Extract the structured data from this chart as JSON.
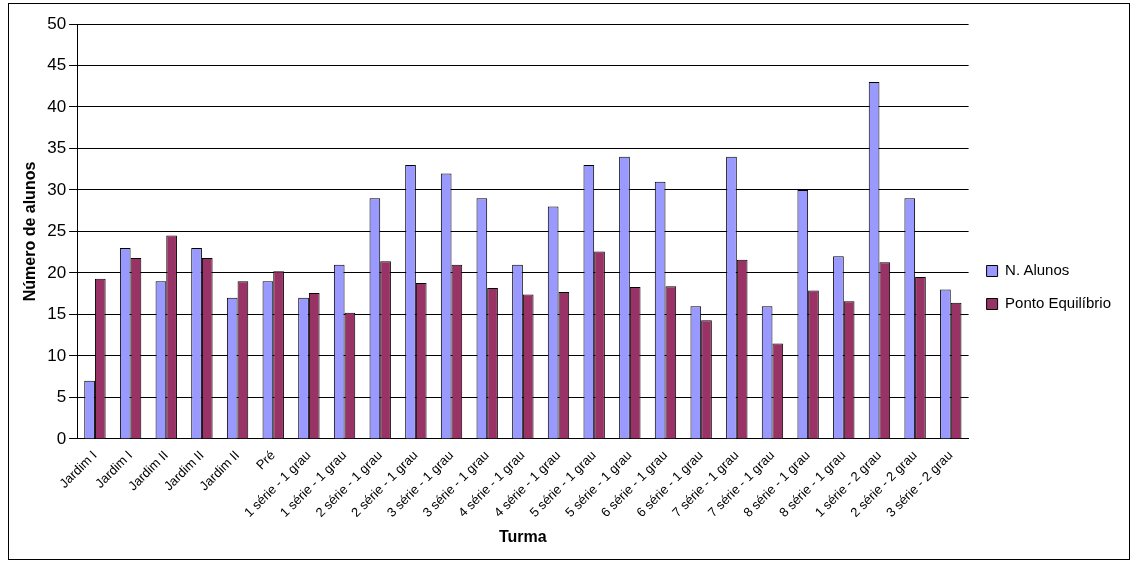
{
  "chart_data": {
    "type": "bar",
    "xlabel": "Turma",
    "ylabel": "Número de alunos",
    "categories": [
      "Jardim I",
      "Jardim I",
      "Jardim II",
      "Jardim II",
      "Jardim II",
      "Pré",
      "1 série - 1 grau",
      "1 série - 1 grau",
      "2 série - 1 grau",
      "2 série - 1 grau",
      "3 série - 1 grau",
      "3 série - 1 grau",
      "4 série - 1 grau",
      "4 série - 1 grau",
      "5 série - 1 grau",
      "5 série - 1 grau",
      "6 série - 1 grau",
      "6 série - 1 grau",
      "7 série - 1 grau",
      "7 série - 1 grau",
      "8 série - 1 grau",
      "8 série - 1 grau",
      "1 série - 2 grau",
      "2 série - 2 grau",
      "3 série - 2 grau"
    ],
    "series": [
      {
        "name": "N. Alunos",
        "color": "#9999ff",
        "values": [
          7,
          23,
          19,
          23,
          17,
          19,
          17,
          21,
          29,
          33,
          32,
          29,
          21,
          28,
          33,
          34,
          31,
          16,
          34,
          16,
          30,
          22,
          43,
          29,
          18
        ]
      },
      {
        "name": "Ponto Equilíbrio",
        "color": "#993366",
        "values": [
          19.3,
          21.8,
          24.5,
          21.8,
          19,
          20.2,
          17.6,
          15.2,
          21.4,
          18.8,
          21,
          18.2,
          17.4,
          17.7,
          22.6,
          18.3,
          18.4,
          14.3,
          21.6,
          11.5,
          17.9,
          16.6,
          21.3,
          19.5,
          16.4
        ]
      }
    ],
    "ylim": [
      0,
      50
    ],
    "yticks": [
      0,
      5,
      10,
      15,
      20,
      25,
      30,
      35,
      40,
      45,
      50
    ],
    "grid": "y",
    "legend": "right"
  }
}
